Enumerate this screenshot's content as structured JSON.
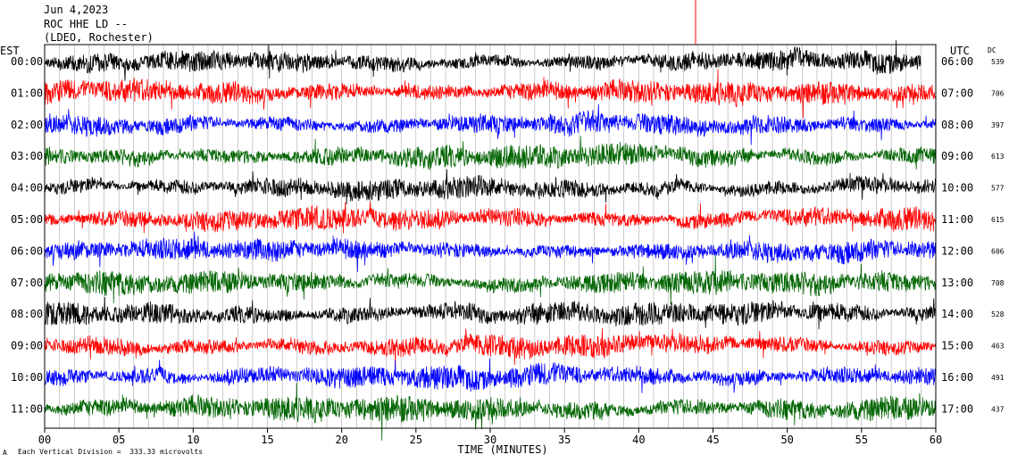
{
  "header": {
    "date": "Jun 4,2023",
    "station": "ROC HHE LD --",
    "network": "(LDEO, Rochester)",
    "left_zone": "EST",
    "right_zone": "UTC",
    "dc_label": "DC"
  },
  "footer": {
    "scale_note": "Each Vertical Division =  333.33 microvolts",
    "corner_mark": "A"
  },
  "chart_data": {
    "type": "line",
    "title": "ROC HHE LD --",
    "subtitle": "(LDEO, Rochester)",
    "xlabel": "TIME (MINUTES)",
    "xlim": [
      0,
      60
    ],
    "x_ticks": [
      0,
      5,
      10,
      15,
      20,
      25,
      30,
      35,
      40,
      45,
      50,
      55,
      60
    ],
    "x_tick_labels": [
      "00",
      "05",
      "10",
      "15",
      "20",
      "25",
      "30",
      "35",
      "40",
      "45",
      "50",
      "55",
      "60"
    ],
    "grid": "vertical lines every minute",
    "colors": [
      "#000000",
      "#ff0000",
      "#0000ff",
      "#006400"
    ],
    "rows": [
      {
        "est": "00:00",
        "utc": "06:00",
        "dc": "539",
        "color": "#000000",
        "amp": 0.85,
        "end": 59.0
      },
      {
        "est": "01:00",
        "utc": "07:00",
        "dc": "706",
        "color": "#ff0000",
        "amp": 1.0,
        "end": 60
      },
      {
        "est": "02:00",
        "utc": "08:00",
        "dc": "397",
        "color": "#0000ff",
        "amp": 0.9,
        "end": 60
      },
      {
        "est": "03:00",
        "utc": "09:00",
        "dc": "613",
        "color": "#006400",
        "amp": 1.0,
        "end": 60
      },
      {
        "est": "04:00",
        "utc": "10:00",
        "dc": "577",
        "color": "#000000",
        "amp": 0.9,
        "end": 60
      },
      {
        "est": "05:00",
        "utc": "11:00",
        "dc": "615",
        "color": "#ff0000",
        "amp": 0.95,
        "end": 60
      },
      {
        "est": "06:00",
        "utc": "12:00",
        "dc": "606",
        "color": "#0000ff",
        "amp": 0.9,
        "end": 60
      },
      {
        "est": "07:00",
        "utc": "13:00",
        "dc": "708",
        "color": "#006400",
        "amp": 1.0,
        "end": 60
      },
      {
        "est": "08:00",
        "utc": "14:00",
        "dc": "528",
        "color": "#000000",
        "amp": 1.0,
        "end": 60
      },
      {
        "est": "09:00",
        "utc": "15:00",
        "dc": "463",
        "color": "#ff0000",
        "amp": 0.95,
        "end": 60
      },
      {
        "est": "10:00",
        "utc": "16:00",
        "dc": "491",
        "color": "#0000ff",
        "amp": 1.0,
        "end": 60
      },
      {
        "est": "11:00",
        "utc": "17:00",
        "dc": "437",
        "color": "#006400",
        "amp": 1.1,
        "end": 60
      }
    ]
  }
}
